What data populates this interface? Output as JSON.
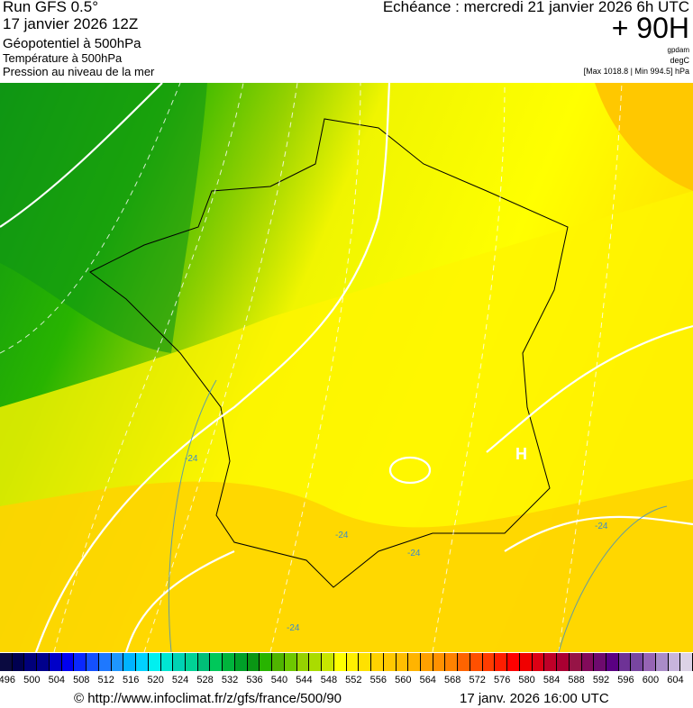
{
  "header": {
    "run": "Run GFS 0.5°",
    "run_date": "17 janvier 2026 12Z",
    "param1": "Géopotentiel à 500hPa",
    "param2": "Température à 500hPa",
    "param3": "Pression au niveau de la mer",
    "echeance": "Echéance : mercredi 21 janvier 2026 6h UTC",
    "lead": "+ 90H",
    "unit1": "gpdam",
    "unit2": "degC",
    "pressure_range": "[Max 1018.8 | Min 994.5] hPa"
  },
  "map": {
    "high_label": "H",
    "temp_labels": [
      "-24",
      "-24",
      "-24",
      "-24",
      "-24"
    ],
    "colors": {
      "green_dark": "#1ea514",
      "green": "#50b400",
      "yellowgreen": "#c8e600",
      "yellow": "#ffff00",
      "gold": "#ffe100",
      "orange": "#ffc800"
    }
  },
  "colorbar": {
    "labels": [
      "496",
      "500",
      "504",
      "508",
      "512",
      "516",
      "520",
      "524",
      "528",
      "532",
      "536",
      "540",
      "544",
      "548",
      "552",
      "556",
      "560",
      "564",
      "568",
      "572",
      "576",
      "580",
      "584",
      "588",
      "592",
      "596",
      "600",
      "604"
    ],
    "colors": [
      "#0a0a40",
      "#000050",
      "#00007a",
      "#00008c",
      "#0000c8",
      "#0000f0",
      "#0a28ff",
      "#1450ff",
      "#1e78ff",
      "#1e96ff",
      "#00b4ff",
      "#00d2ff",
      "#00f0f0",
      "#00e6d2",
      "#00d2b4",
      "#00d296",
      "#00be78",
      "#00c85a",
      "#00b43c",
      "#00a028",
      "#0a9614",
      "#28b400",
      "#50b400",
      "#6ec800",
      "#96d200",
      "#aadc00",
      "#c8e600",
      "#ffff00",
      "#fff000",
      "#ffe100",
      "#ffd200",
      "#ffc800",
      "#ffbe00",
      "#ffb400",
      "#ffa000",
      "#ff9100",
      "#ff8200",
      "#ff6400",
      "#ff5000",
      "#ff3c00",
      "#ff1e00",
      "#ff0000",
      "#f00000",
      "#dc0014",
      "#be0028",
      "#aa0032",
      "#961446",
      "#820a5a",
      "#6e0a6e",
      "#5a0082",
      "#6e3296",
      "#7846a0",
      "#9664b4",
      "#aa8cc8",
      "#c8b4dc",
      "#dcd2e6"
    ]
  },
  "footer": {
    "url": "© http://www.infoclimat.fr/z/gfs/france/500/90",
    "timestamp": "17 janv. 2026 16:00 UTC"
  }
}
